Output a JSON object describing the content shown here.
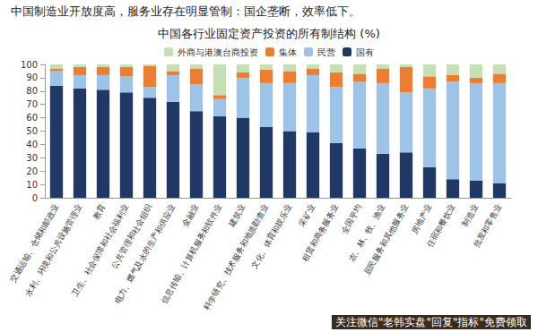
{
  "chart_data": {
    "type": "bar",
    "subtitle": "中国制造业开放度高，服务业存在明显管制：国企垄断，效率低下。",
    "title": "中国各行业固定资产投资的所有制结构 (%)",
    "annotations": [
      "关注微信\"老韩实盘\"回复\"指标\"免费领取"
    ],
    "categories": [
      "交通运输、仓储和邮政业",
      "水利、环境和公共设施管理业",
      "教育",
      "卫生、社会保障和社会福利业",
      "公共管理和社会组织",
      "电力、燃气及水的生产和供应业",
      "金融业",
      "信息传输、计算机服务和软件业",
      "建筑业",
      "科学研究、技术服务和地质勘查业",
      "文化、体育和娱乐业",
      "采矿业",
      "租赁和商务服务业",
      "全国平均",
      "农、林、牧、渔业",
      "居民服务和其他服务业",
      "房地产业",
      "住宿和餐饮业",
      "制造业",
      "批发和零售业"
    ],
    "series": [
      {
        "name": "国有",
        "color": "#1f3864",
        "values": [
          84,
          82,
          81,
          79,
          75,
          72,
          65,
          61,
          60,
          53,
          50,
          49,
          41,
          37,
          33,
          34,
          23,
          14,
          13,
          11
        ]
      },
      {
        "name": "民营",
        "color": "#9dc3e6",
        "values": [
          11,
          10,
          11,
          12,
          8,
          20,
          20,
          13,
          30,
          33,
          36,
          43,
          42,
          50,
          53,
          45,
          59,
          73,
          73,
          75
        ]
      },
      {
        "name": "集体",
        "color": "#ed7d31",
        "values": [
          2,
          6,
          6,
          7,
          16,
          3,
          12,
          3,
          4,
          10,
          9,
          5,
          11,
          6,
          11,
          19,
          9,
          5,
          4,
          7
        ]
      },
      {
        "name": "外商与港澳台商投资",
        "color": "#c5e0b4",
        "values": [
          3,
          2,
          2,
          2,
          1,
          5,
          3,
          23,
          6,
          4,
          5,
          3,
          6,
          7,
          3,
          2,
          9,
          8,
          10,
          7
        ]
      }
    ],
    "stacked": true,
    "ylim": [
      0,
      100
    ],
    "yticks": [
      0,
      10,
      20,
      30,
      40,
      50,
      60,
      70,
      80,
      90,
      100
    ],
    "grid": false,
    "legend": "top"
  }
}
